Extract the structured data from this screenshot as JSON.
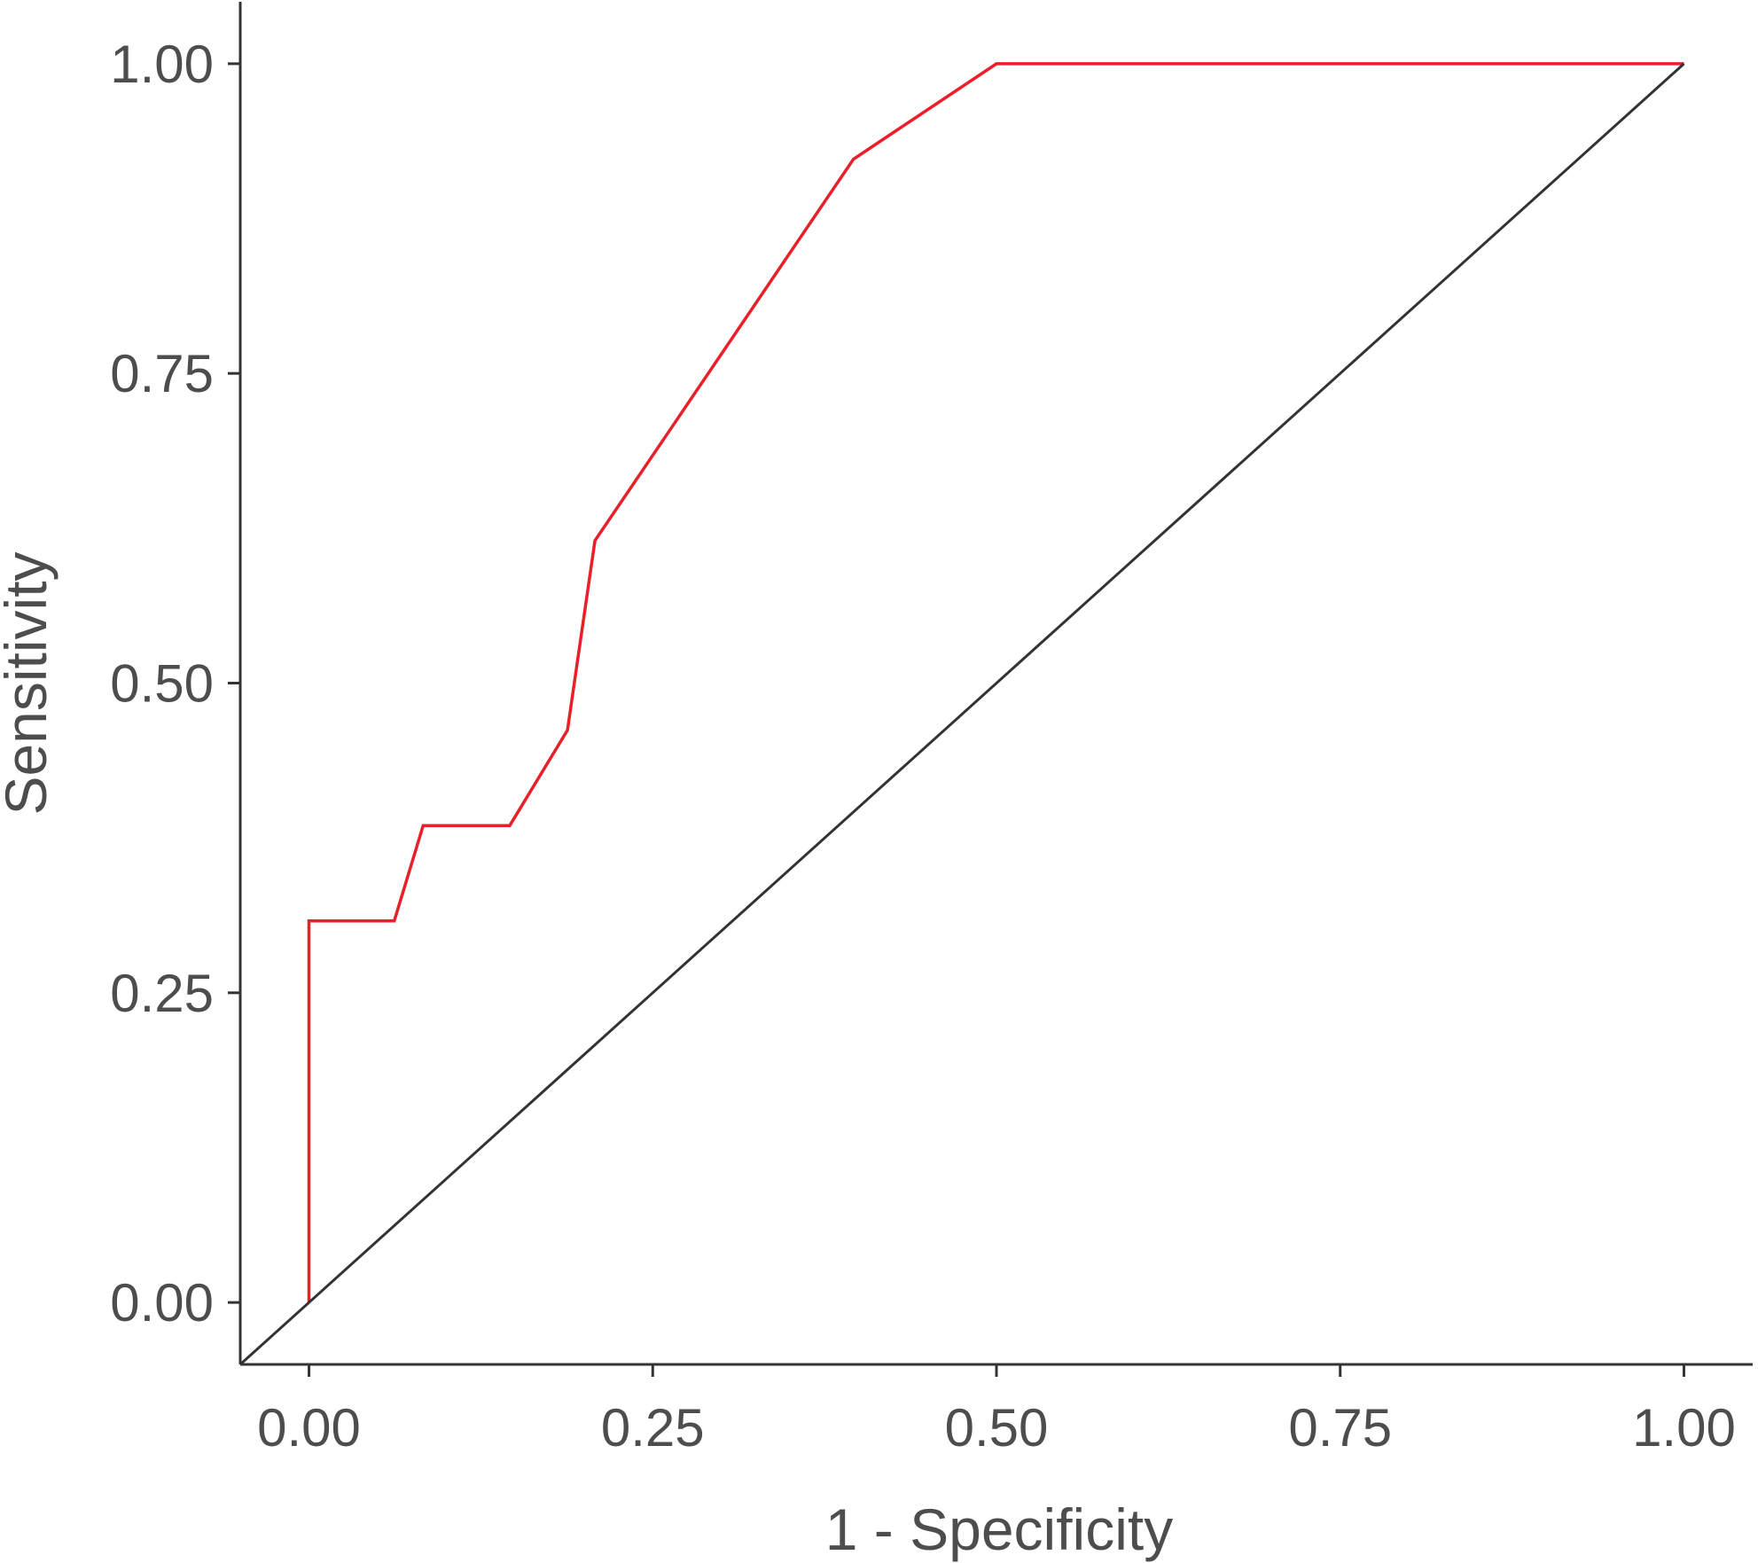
{
  "chart_data": {
    "type": "line",
    "title": "",
    "xlabel": "1 - Specificity",
    "ylabel": "Sensitivity",
    "xlim": [
      -0.05,
      1.05
    ],
    "ylim": [
      -0.05,
      1.05
    ],
    "x_ticks": [
      "0.00",
      "0.25",
      "0.50",
      "0.75",
      "1.00"
    ],
    "y_ticks": [
      "0.00",
      "0.25",
      "0.50",
      "0.75",
      "1.00"
    ],
    "grid": false,
    "legend": "none",
    "series": [
      {
        "role": "roc-curve",
        "color": "#e8202a",
        "x": [
          0.0,
          0.0,
          0.062,
          0.083,
          0.146,
          0.188,
          0.208,
          0.396,
          0.5,
          1.0
        ],
        "y": [
          0.0,
          0.308,
          0.308,
          0.385,
          0.385,
          0.462,
          0.615,
          0.923,
          1.0,
          1.0
        ]
      },
      {
        "role": "reference-diagonal",
        "color": "#333333",
        "x": [
          -0.05,
          1.0
        ],
        "y": [
          -0.05,
          1.0
        ]
      }
    ]
  }
}
